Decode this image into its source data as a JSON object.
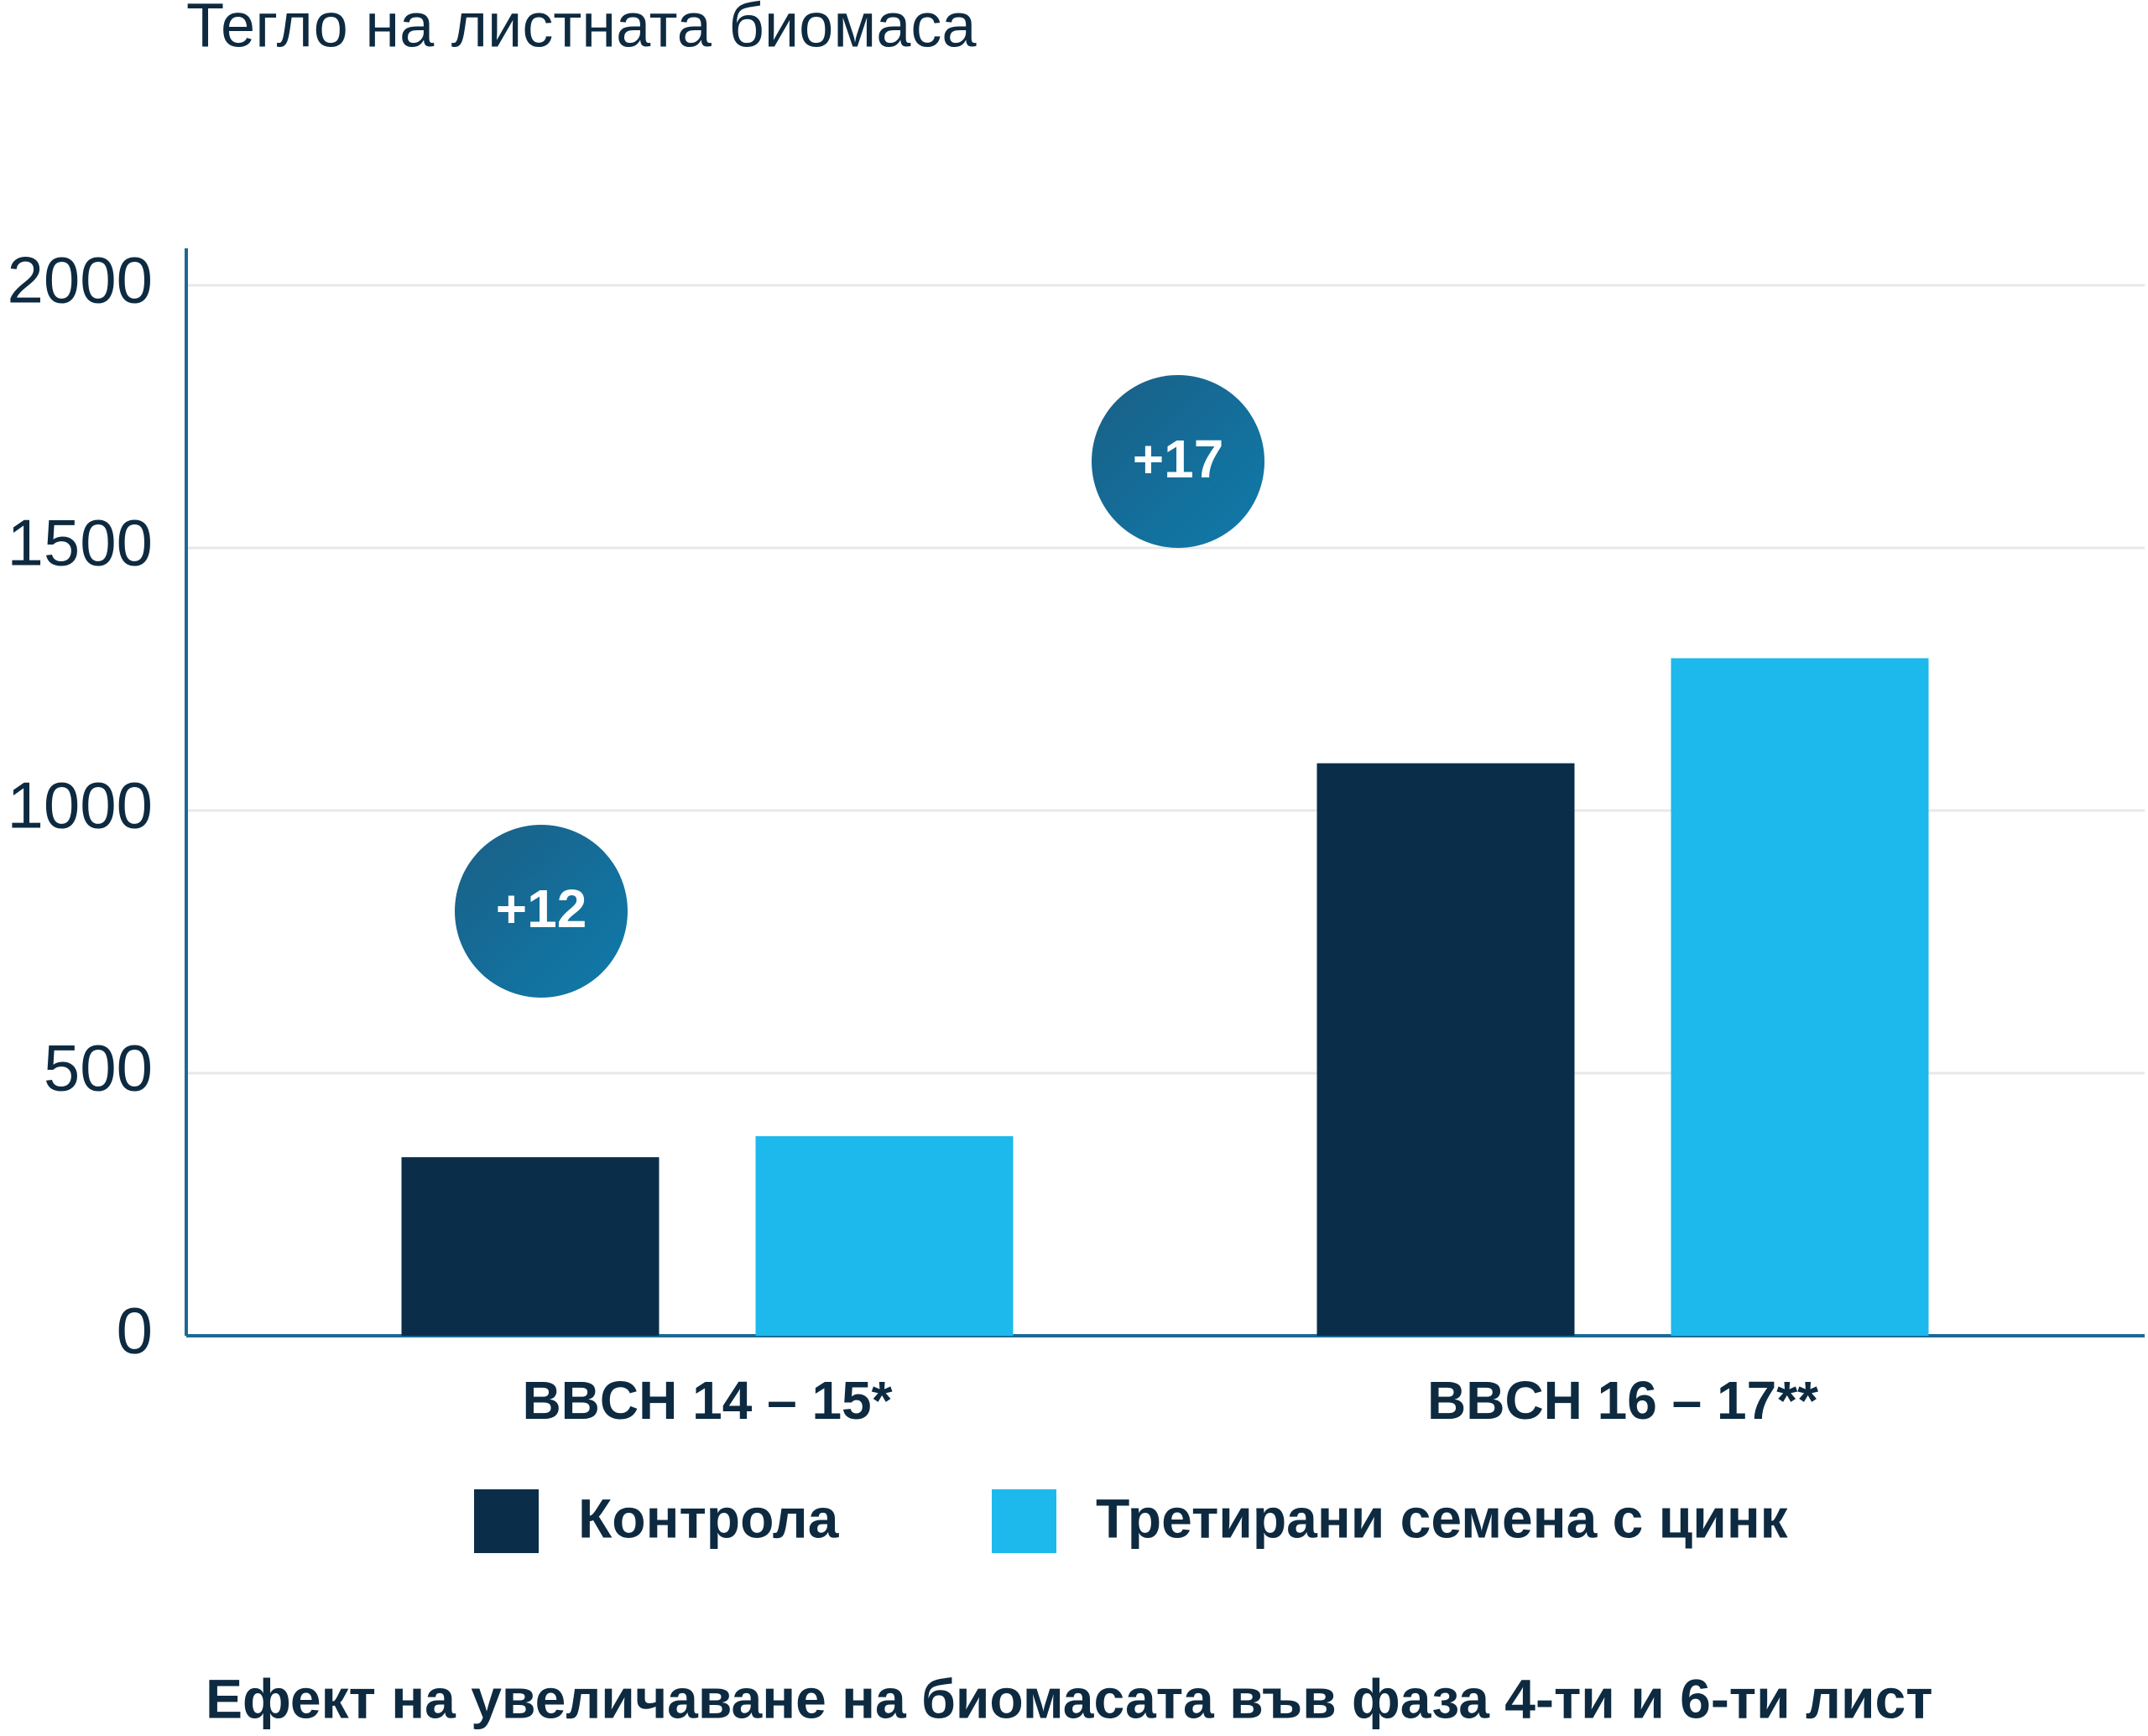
{
  "chart_data": {
    "type": "bar",
    "title": "Тегло на листната биомаса",
    "caption": "Ефект на увеличаване на биомасата във фаза 4-ти и 6-ти лист",
    "categories": [
      "BBCH 14 – 15*",
      "BBCH 16 – 17**"
    ],
    "series": [
      {
        "name": "Контрола",
        "color": "#0a2e4a",
        "values": [
          340,
          1090
        ]
      },
      {
        "name": "Третирани семена с цинк",
        "color": "#1db9ec",
        "values": [
          380,
          1290
        ]
      }
    ],
    "annotations": [
      "+12",
      "+17"
    ],
    "ylim": [
      0,
      2000
    ],
    "yticks": [
      0,
      500,
      1000,
      1500,
      2000
    ],
    "grid": true
  }
}
